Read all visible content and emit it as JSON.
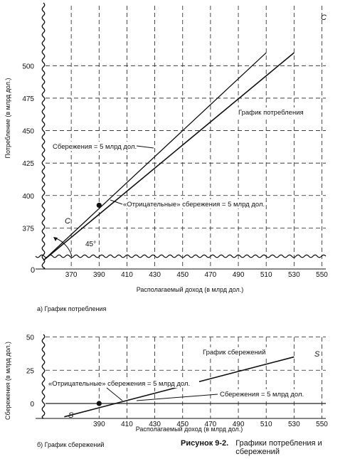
{
  "chart_data": [
    {
      "type": "line",
      "xlabel": "Располагаемый доход (в млрд дол.)",
      "ylabel": "Потребление (в млрд дол.)",
      "caption": "а) График потребления",
      "x_ticks": [
        "370",
        "390",
        "410",
        "430",
        "450",
        "470",
        "490",
        "510",
        "530",
        "550"
      ],
      "y_ticks": [
        "375",
        "400",
        "425",
        "450",
        "475",
        "500"
      ],
      "origin_label": "0",
      "xlim": [
        350,
        550
      ],
      "ylim": [
        350,
        512
      ],
      "series": [
        {
          "name": "C",
          "x": [
            350,
            530
          ],
          "y": [
            350,
            510
          ]
        },
        {
          "x": [
            350,
            510
          ],
          "y": [
            350,
            510
          ]
        }
      ],
      "point": {
        "x": 390,
        "y": 392.5
      },
      "angle_label": "45°",
      "annotations": {
        "series_label": "График потребления",
        "saving_positive": "Сбережения = 5 млрд дол.",
        "saving_negative": "«Отрицательные» сбережения = 5 млрд дол.",
        "c_label_bottom": "C",
        "c_label_top": "C"
      }
    },
    {
      "type": "line",
      "xlabel": "Располагаемый доход (в млрд дол.)",
      "ylabel": "Сбережения (в млрд дол.)",
      "caption": "б) График сбережений",
      "x_ticks": [
        "390",
        "410",
        "430",
        "450",
        "470",
        "490",
        "510",
        "530",
        "550"
      ],
      "y_ticks": [
        "0",
        "25",
        "50"
      ],
      "xlim": [
        350,
        550
      ],
      "ylim": [
        -10,
        52
      ],
      "series": [
        {
          "name": "S",
          "x": [
            365,
            530
          ],
          "y": [
            -10,
            35
          ]
        }
      ],
      "point": {
        "x": 390,
        "y": 0
      },
      "annotations": {
        "series_label": "График сбережений",
        "saving_negative": "«Отрицательные» сбережения = 5 млрд дол.",
        "saving_positive": "Сбережения = 5 млрд дол.",
        "s_label_left": "S",
        "s_label_right": "S"
      }
    }
  ],
  "figure": {
    "number": "Рисунок 9-2.",
    "title": "Графики потребления и сбережений"
  }
}
